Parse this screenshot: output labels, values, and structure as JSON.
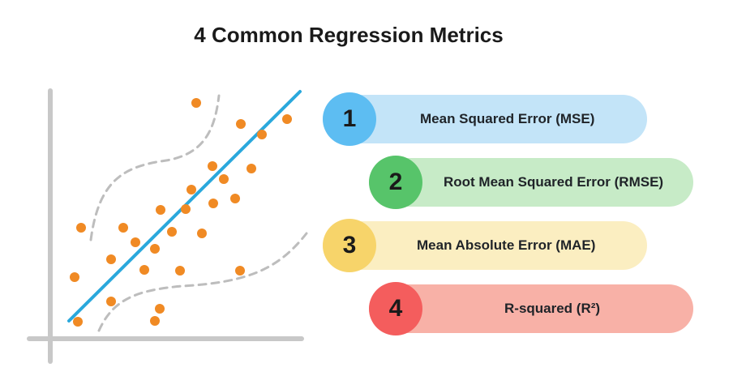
{
  "title": "4 Common Regression Metrics",
  "metrics": [
    {
      "number": "1",
      "label": "Mean Squared Error (MSE)",
      "badge_color": "#5dbdf2",
      "bar_color": "#c3e4f8"
    },
    {
      "number": "2",
      "label": "Root Mean Squared Error (RMSE)",
      "badge_color": "#57c46a",
      "bar_color": "#c7ebc7"
    },
    {
      "number": "3",
      "label": "Mean Absolute Error (MAE)",
      "badge_color": "#f7d46a",
      "bar_color": "#fbeec1"
    },
    {
      "number": "4",
      "label": "R-squared (R²)",
      "badge_color": "#f45d5d",
      "bar_color": "#f8b1a7"
    }
  ],
  "illustration": {
    "point_color": "#f08a24",
    "line_color": "#2aa8dc",
    "band_color": "#bdbdbd",
    "axis_color": "#c8c8c8"
  }
}
